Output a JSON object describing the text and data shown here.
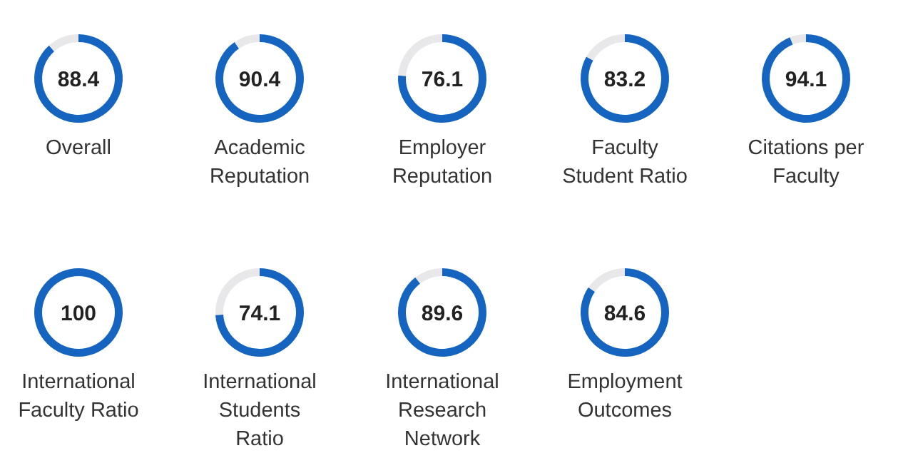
{
  "chart_data": [
    {
      "type": "donut",
      "title": "Overall",
      "categories": [
        null,
        null
      ],
      "values": [
        88.4,
        11.6
      ],
      "colors": [
        "#1565c0",
        "#e8e8ea"
      ],
      "value_labels": [
        "88.4",
        null
      ]
    },
    {
      "type": "donut",
      "title": "Academic Reputation",
      "categories": [
        null,
        null
      ],
      "values": [
        90.4,
        9.6
      ],
      "colors": [
        "#1565c0",
        "#e8e8ea"
      ],
      "value_labels": [
        "90.4",
        null
      ]
    },
    {
      "type": "donut",
      "title": "Employer Reputation",
      "categories": [
        null,
        null
      ],
      "values": [
        76.1,
        23.9
      ],
      "colors": [
        "#1565c0",
        "#e8e8ea"
      ],
      "value_labels": [
        "76.1",
        null
      ]
    },
    {
      "type": "donut",
      "title": "Faculty Student Ratio",
      "categories": [
        null,
        null
      ],
      "values": [
        83.2,
        16.8
      ],
      "colors": [
        "#1565c0",
        "#e8e8ea"
      ],
      "value_labels": [
        "83.2",
        null
      ]
    },
    {
      "type": "donut",
      "title": "Citations per Faculty",
      "categories": [
        null,
        null
      ],
      "values": [
        94.1,
        5.9
      ],
      "colors": [
        "#1565c0",
        "#e8e8ea"
      ],
      "value_labels": [
        "94.1",
        null
      ]
    },
    {
      "type": "donut",
      "title": "International Faculty Ratio",
      "categories": [
        null,
        null
      ],
      "values": [
        100,
        0
      ],
      "colors": [
        "#1565c0",
        "#e8e8ea"
      ],
      "value_labels": [
        "100",
        null
      ]
    },
    {
      "type": "donut",
      "title": "International Students Ratio",
      "categories": [
        null,
        null
      ],
      "values": [
        74.1,
        25.9
      ],
      "colors": [
        "#1565c0",
        "#e8e8ea"
      ],
      "value_labels": [
        "74.1",
        null
      ]
    },
    {
      "type": "donut",
      "title": "International Research Network",
      "categories": [
        null,
        null
      ],
      "values": [
        89.6,
        10.4
      ],
      "colors": [
        "#1565c0",
        "#e8e8ea"
      ],
      "value_labels": [
        "89.6",
        null
      ]
    },
    {
      "type": "donut",
      "title": "Employment Outcomes",
      "categories": [
        null,
        null
      ],
      "values": [
        84.6,
        15.4
      ],
      "colors": [
        "#1565c0",
        "#e8e8ea"
      ],
      "value_labels": [
        "84.6",
        null
      ]
    }
  ]
}
